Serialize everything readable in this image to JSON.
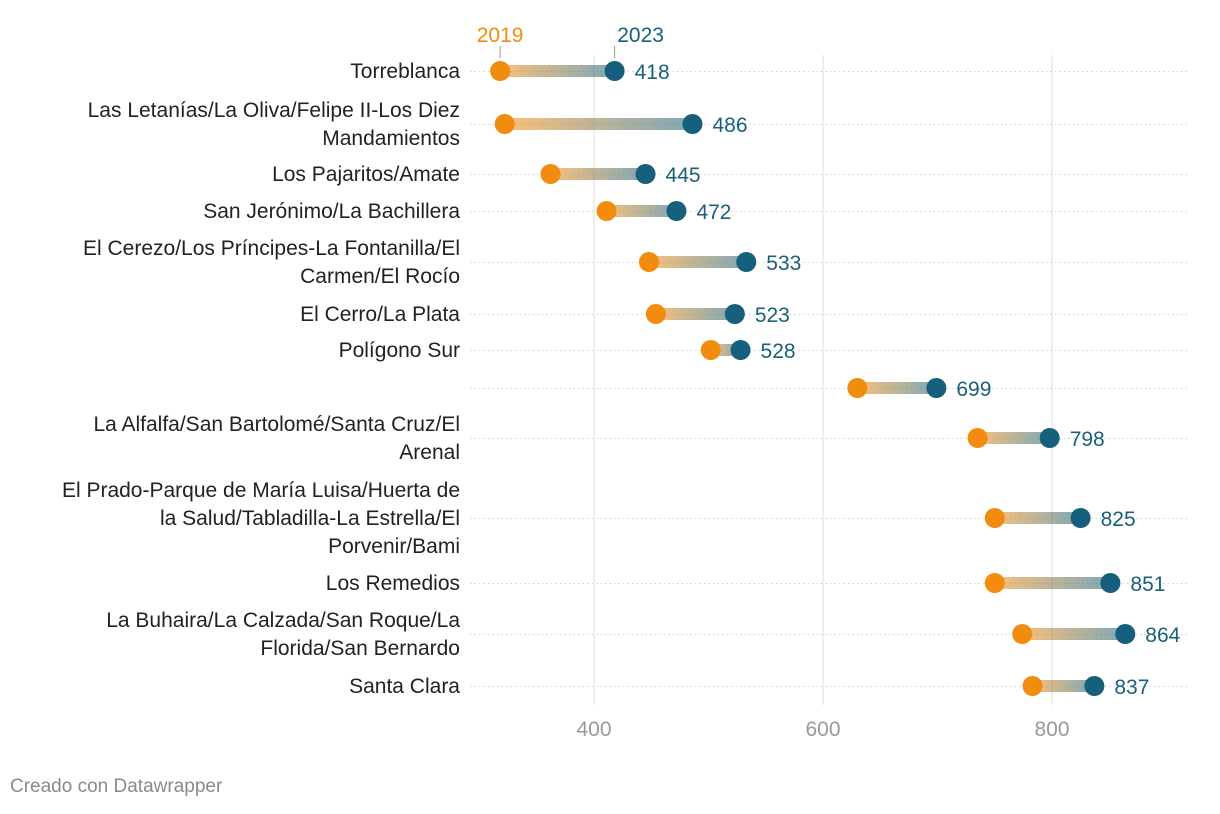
{
  "chart_data": {
    "type": "dumbbell",
    "series": [
      {
        "name": "2019",
        "color": "#f28c0f"
      },
      {
        "name": "2023",
        "color": "#17607d"
      }
    ],
    "x_ticks": [
      400,
      600,
      800
    ],
    "x_tick_labels": [
      "400",
      "600",
      "800"
    ],
    "xlim": [
      300,
      935
    ],
    "rows": [
      {
        "label_lines": [
          "Torreblanca"
        ],
        "v2019": 318,
        "v2023": 418,
        "value_label": "418"
      },
      {
        "label_lines": [
          "Las Letanías/La Oliva/Felipe II-Los Diez",
          "Mandamientos"
        ],
        "v2019": 322,
        "v2023": 486,
        "value_label": "486"
      },
      {
        "label_lines": [
          "Los Pajaritos/Amate"
        ],
        "v2019": 362,
        "v2023": 445,
        "value_label": "445"
      },
      {
        "label_lines": [
          "San Jerónimo/La Bachillera"
        ],
        "v2019": 411,
        "v2023": 472,
        "value_label": "472"
      },
      {
        "label_lines": [
          "El Cerezo/Los Príncipes-La Fontanilla/El",
          "Carmen/El Rocío"
        ],
        "v2019": 448,
        "v2023": 533,
        "value_label": "533"
      },
      {
        "label_lines": [
          "El Cerro/La Plata"
        ],
        "v2019": 454,
        "v2023": 523,
        "value_label": "523"
      },
      {
        "label_lines": [
          "Polígono Sur"
        ],
        "v2019": 502,
        "v2023": 528,
        "value_label": "528"
      },
      {
        "label_lines": [],
        "v2019": 630,
        "v2023": 699,
        "value_label": "699"
      },
      {
        "label_lines": [
          "La Alfalfa/San Bartolomé/Santa Cruz/El",
          "Arenal"
        ],
        "v2019": 735,
        "v2023": 798,
        "value_label": "798"
      },
      {
        "label_lines": [
          "El Prado-Parque de María Luisa/Huerta de",
          "la Salud/Tabladilla-La Estrella/El",
          "Porvenir/Bami"
        ],
        "v2019": 750,
        "v2023": 825,
        "value_label": "825"
      },
      {
        "label_lines": [
          "Los Remedios"
        ],
        "v2019": 750,
        "v2023": 851,
        "value_label": "851"
      },
      {
        "label_lines": [
          "La Buhaira/La Calzada/San Roque/La",
          "Florida/San Bernardo"
        ],
        "v2019": 774,
        "v2023": 864,
        "value_label": "864"
      },
      {
        "label_lines": [
          "Santa Clara"
        ],
        "v2019": 783,
        "v2023": 837,
        "value_label": "837"
      }
    ]
  },
  "footer": {
    "credit": "Creado con Datawrapper"
  }
}
